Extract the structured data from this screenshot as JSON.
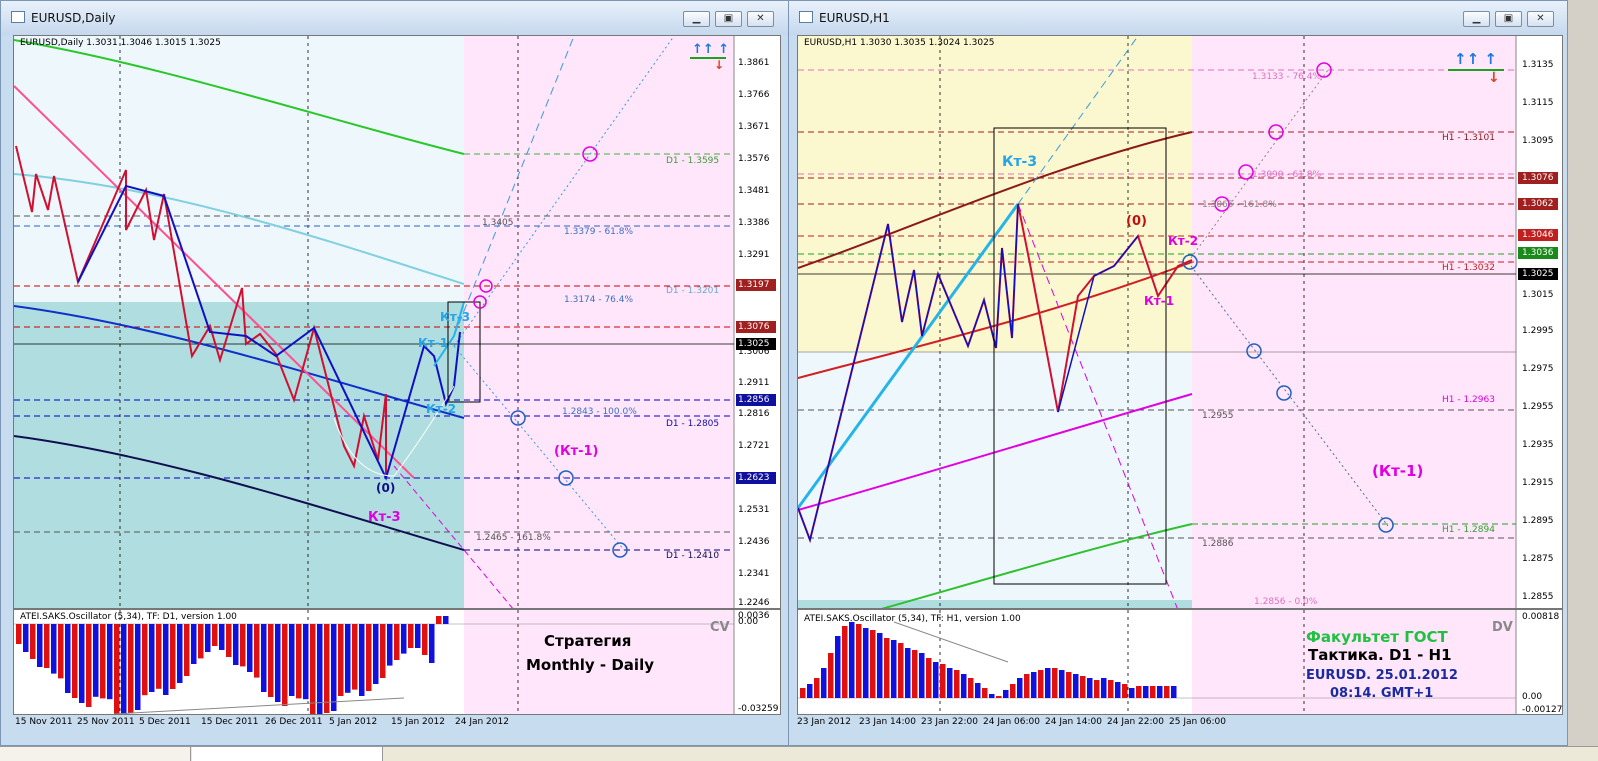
{
  "left": {
    "title": "EURUSD,Daily",
    "info": "EURUSD,Daily  1.3031 1.3046 1.3015 1.3025",
    "osc_label": "ATEI.SAKS.Oscillator (5,34), TF: D1, version 1.00",
    "osc_tag": "CV",
    "strategy_line1": "Стратегия",
    "strategy_line2": "Monthly - Daily",
    "price_scale": [
      "1.3861",
      "1.3766",
      "1.3671",
      "1.3576",
      "1.3481",
      "1.3386",
      "1.3291",
      "1.3197",
      "1.3076",
      "1.3025",
      "1.3006",
      "1.2911",
      "1.2856",
      "1.2816",
      "1.2721",
      "1.2623",
      "1.2531",
      "1.2436",
      "1.2341",
      "1.2246"
    ],
    "osc_scale": [
      "0.0036",
      "0.00",
      "-0.03259"
    ],
    "dates": [
      "15 Nov 2011",
      "25 Nov 2011",
      "5 Dec 2011",
      "15 Dec 2011",
      "26 Dec 2011",
      "5 Jan 2012",
      "15 Jan 2012",
      "24 Jan 2012"
    ],
    "levels": [
      "D1 - 1.3595",
      "1.3405",
      "1.3379 - 61.8%",
      "D1 - 1.3201",
      "1.3174 - 76.4%",
      "1.2843 - 100.0%",
      "D1 - 1.2805",
      "1.2465 - 161.8%",
      "D1 - 1.2410"
    ],
    "labels": {
      "kt3_blue": "Кт-3",
      "kt1_blue": "Кт-1",
      "kt2_blue": "Кт-2",
      "zero": "(0)",
      "kt3_mag": "Кт-3",
      "kt1_mag": "(Кт-1)"
    },
    "arrows_up": "↑↑  ↑",
    "arrow_down": "↓"
  },
  "right": {
    "title": "EURUSD,H1",
    "info": "EURUSD,H1  1.3030 1.3035 1.3024 1.3025",
    "osc_label": "ATEI.SAKS.Oscillator (5,34), TF: H1, version 1.00",
    "osc_tag": "DV",
    "faculty": "Факультет ГОСТ",
    "tactic": "Тактика. D1 - H1",
    "date_line": "EURUSD. 25.01.2012",
    "time_line": "08:14. GMT+1",
    "price_scale": [
      "1.3135",
      "1.3115",
      "1.3095",
      "1.3076",
      "1.3062",
      "1.3046",
      "1.3036",
      "1.3025",
      "1.3015",
      "1.2995",
      "1.2975",
      "1.2955",
      "1.2935",
      "1.2915",
      "1.2895",
      "1.2875",
      "1.2855"
    ],
    "osc_scale": [
      "0.00818",
      "0.00",
      "-0.00127"
    ],
    "dates": [
      "23 Jan 2012",
      "23 Jan 14:00",
      "23 Jan 22:00",
      "24 Jan 06:00",
      "24 Jan 14:00",
      "24 Jan 22:00",
      "25 Jan 06:00"
    ],
    "levels": [
      "1.3133 - 76.4%",
      "H1 - 1.3101",
      "1.3090 - 61.8%",
      "1.3065 - 161.8%",
      "H1 - 1.3032",
      "1.2955",
      "H1 - 1.2963",
      "H1 - 1.2894",
      "1.2886",
      "1.2856 - 0.0%"
    ],
    "labels": {
      "kt3": "Кт-3",
      "zero": "(0)",
      "kt2": "Кт-2",
      "kt1": "Кт-1",
      "kt1_mag": "(Кт-1)"
    },
    "arrows_up": "↑↑  ↑",
    "arrow_down": "↓"
  },
  "colors": {
    "red": "#e00000",
    "blue": "#0000e0",
    "pink_zone": "#ffe6fa",
    "teal_zone": "#b0dde0",
    "yellow_zone": "#fbf8d0",
    "magenta": "#e000e0"
  }
}
